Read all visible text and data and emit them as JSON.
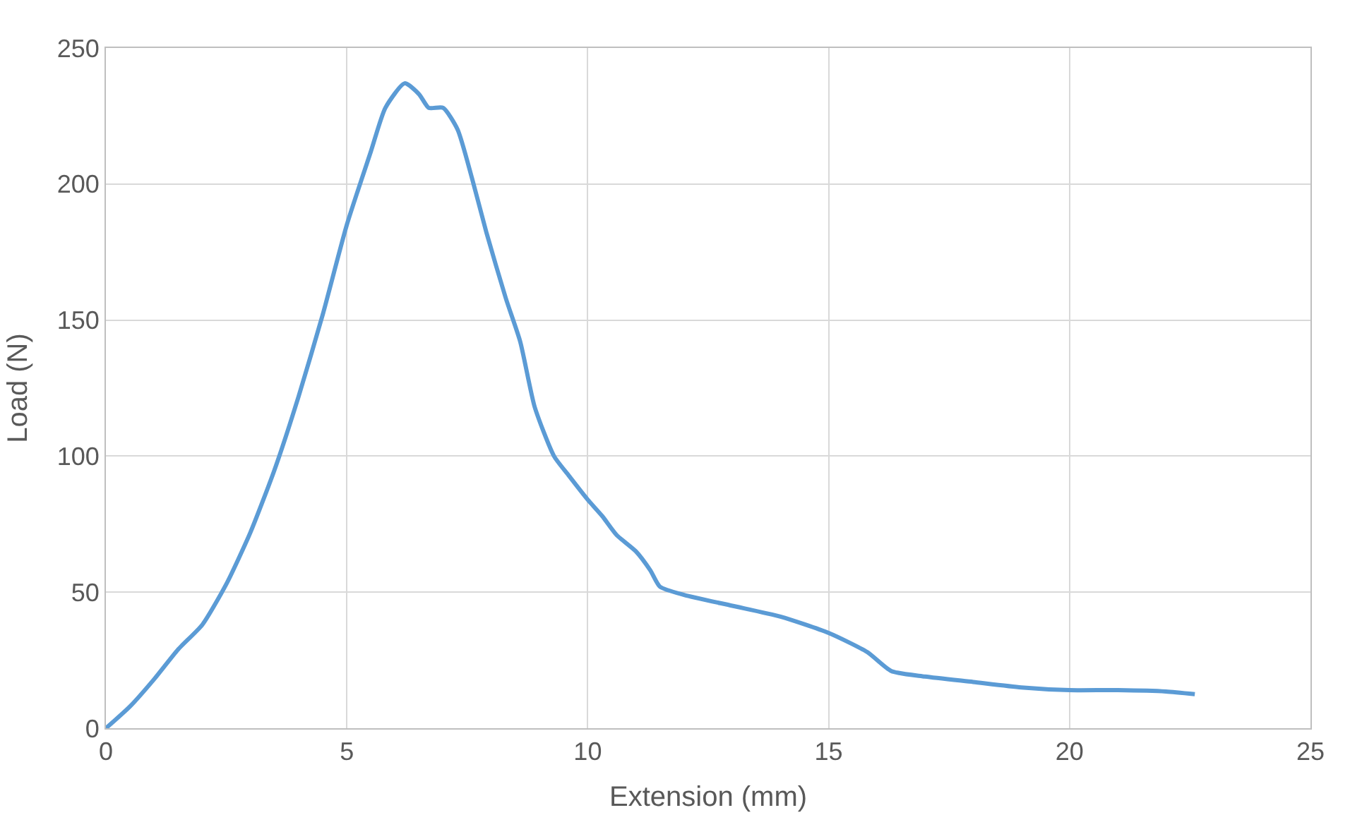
{
  "chart_data": {
    "type": "line",
    "xlabel": "Extension (mm)",
    "ylabel": "Load (N)",
    "xlim": [
      0,
      25
    ],
    "xticks": [
      0,
      5,
      10,
      15,
      20,
      25
    ],
    "ylim": [
      0,
      250
    ],
    "yticks": [
      0,
      50,
      100,
      150,
      200,
      250
    ],
    "grid": true,
    "marker": "none",
    "line_style": "solid",
    "series": [
      {
        "color": "#5b9bd5",
        "x": [
          0,
          0.5,
          1,
          1.5,
          2,
          2.5,
          3,
          3.5,
          4,
          4.5,
          5,
          5.5,
          5.8,
          6.2,
          6.5,
          6.7,
          7.0,
          7.3,
          7.6,
          7.9,
          8.3,
          8.6,
          8.9,
          9.3,
          9.6,
          10,
          10.3,
          10.6,
          11,
          11.3,
          11.5,
          12,
          13,
          14,
          15,
          15.8,
          16.3,
          17,
          18,
          19,
          20,
          21,
          22,
          22.6
        ],
        "values": [
          0,
          8,
          18,
          29,
          38,
          53,
          72,
          95,
          122,
          152,
          185,
          212,
          228,
          237,
          233,
          228,
          228,
          220,
          202,
          182,
          158,
          142,
          118,
          100,
          93,
          84,
          78,
          71,
          65,
          58,
          52,
          49,
          45,
          41,
          35,
          28,
          21,
          19,
          17,
          15,
          14,
          14,
          13.5,
          12.5
        ]
      }
    ]
  }
}
